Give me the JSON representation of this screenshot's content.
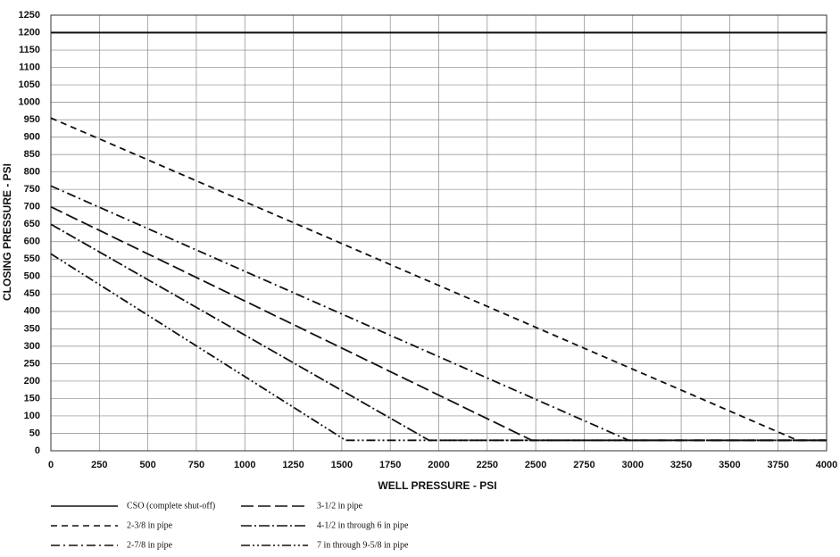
{
  "chart_data": {
    "type": "line",
    "x_label": "WELL PRESSURE - PSI",
    "y_label": "CLOSING PRESSURE - PSI",
    "xlim": [
      0,
      4000
    ],
    "xticks": [
      0,
      250,
      500,
      750,
      1000,
      1250,
      1500,
      1750,
      2000,
      2250,
      2500,
      2750,
      3000,
      3250,
      3500,
      3750,
      4000
    ],
    "ylim": [
      0,
      1250
    ],
    "yticks": [
      0,
      50,
      100,
      150,
      200,
      250,
      300,
      350,
      400,
      450,
      500,
      550,
      600,
      650,
      700,
      750,
      800,
      850,
      900,
      950,
      1000,
      1050,
      1100,
      1150,
      1200,
      1250
    ],
    "grid": true,
    "series": [
      {
        "name": "CSO (complete shut-off)",
        "color": "#111111",
        "dash": "none",
        "x": [
          0,
          4000
        ],
        "values": [
          1200,
          1200
        ]
      },
      {
        "name": "2-3/8 in pipe",
        "color": "#111111",
        "dash": "7 5",
        "x": [
          0,
          3850,
          4000
        ],
        "values": [
          955,
          30,
          30
        ]
      },
      {
        "name": "2-7/8 in pipe",
        "color": "#111111",
        "dash": "10 4 2 4",
        "x": [
          0,
          2980,
          4000
        ],
        "values": [
          760,
          30,
          30
        ]
      },
      {
        "name": "3-1/2 in pipe",
        "color": "#111111",
        "dash": "14 5",
        "x": [
          0,
          2480,
          4000
        ],
        "values": [
          700,
          30,
          30
        ]
      },
      {
        "name": "4-1/2 in through 6 in pipe",
        "color": "#111111",
        "dash": "12 3 2 3",
        "x": [
          0,
          1950,
          4000
        ],
        "values": [
          650,
          30,
          30
        ]
      },
      {
        "name": "7 in through 9-5/8 in pipe",
        "color": "#111111",
        "dash": "10 3 2 3 2 3",
        "x": [
          0,
          1520,
          4000
        ],
        "values": [
          565,
          30,
          30
        ]
      }
    ]
  }
}
